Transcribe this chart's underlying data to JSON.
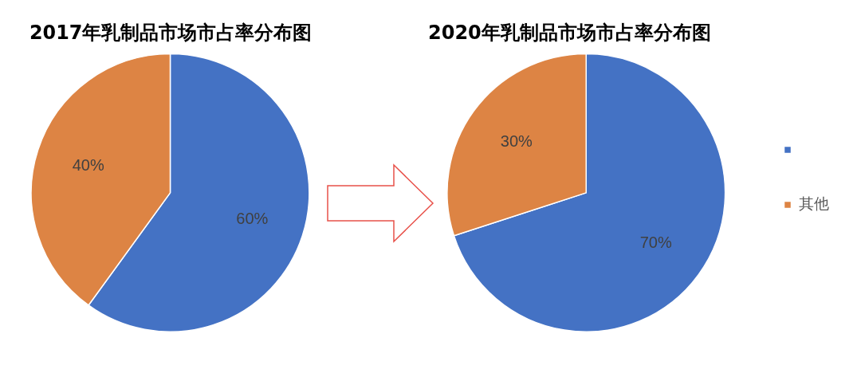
{
  "chart_data": [
    {
      "type": "pie",
      "title": "2017年乳制品市场市占率分布图",
      "categories": [
        null,
        null
      ],
      "values": [
        60,
        40
      ],
      "value_labels": [
        "60%",
        "40%"
      ],
      "colors": [
        "#4472c4",
        "#dd8444"
      ],
      "legend": false
    },
    {
      "type": "pie",
      "title": "2020年乳制品市场市占率分布图",
      "categories": [
        null,
        "其他"
      ],
      "values": [
        70,
        30
      ],
      "value_labels": [
        "70%",
        "30%"
      ],
      "colors": [
        "#4472c4",
        "#dd8444"
      ],
      "legend": "right"
    }
  ]
}
